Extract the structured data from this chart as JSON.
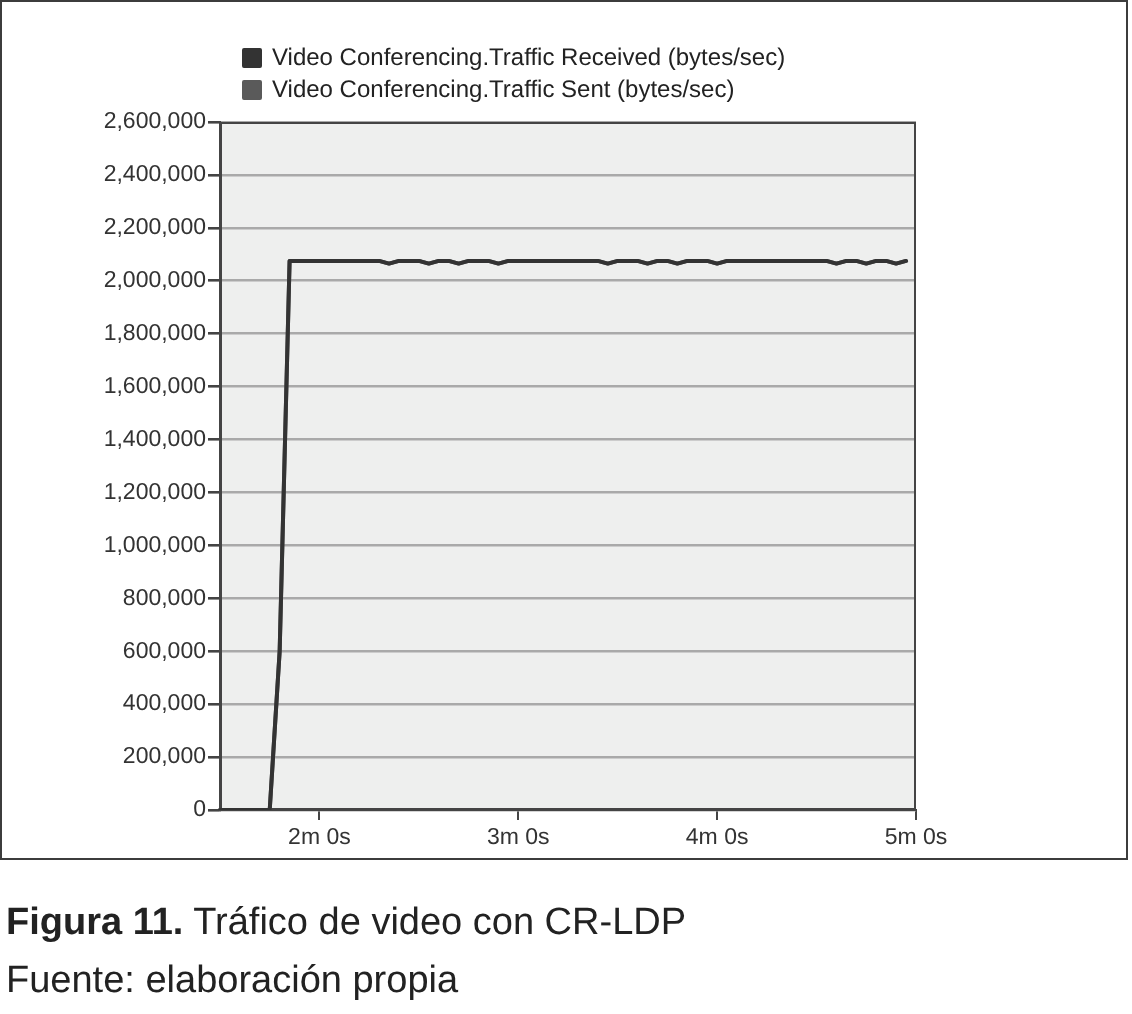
{
  "chart_data": {
    "type": "line",
    "title": "Figura 11. Tráfico de video con CR-LDP",
    "annotations": [
      "Fuente: elaboración propia"
    ],
    "categories": [
      null,
      null,
      null,
      null,
      null,
      null,
      null,
      null,
      null,
      null,
      "2m 0s",
      null,
      null,
      null,
      null,
      null,
      null,
      null,
      null,
      null,
      null,
      null,
      null,
      null,
      null,
      null,
      null,
      null,
      null,
      null,
      "3m 0s",
      null,
      null,
      null,
      null,
      null,
      null,
      null,
      null,
      null,
      null,
      null,
      null,
      null,
      null,
      null,
      null,
      null,
      null,
      null,
      "4m 0s",
      null,
      null,
      null,
      null,
      null,
      null,
      null,
      null,
      null,
      null,
      null,
      null,
      null,
      null,
      null,
      null,
      null,
      null,
      null,
      "5m 0s"
    ],
    "series": [
      {
        "name": "Video Conferencing.Traffic Received (bytes/sec)",
        "color": "#333333",
        "values": [
          0,
          0,
          0,
          0,
          0,
          0,
          600000,
          2075000,
          2075000,
          2075000,
          2075000,
          2075000,
          2075000,
          2075000,
          2075000,
          2075000,
          2075000,
          2065000,
          2075000,
          2075000,
          2075000,
          2065000,
          2075000,
          2075000,
          2065000,
          2075000,
          2075000,
          2075000,
          2065000,
          2075000,
          2075000,
          2075000,
          2075000,
          2075000,
          2075000,
          2075000,
          2075000,
          2075000,
          2075000,
          2065000,
          2075000,
          2075000,
          2075000,
          2065000,
          2075000,
          2075000,
          2065000,
          2075000,
          2075000,
          2075000,
          2065000,
          2075000,
          2075000,
          2075000,
          2075000,
          2075000,
          2075000,
          2075000,
          2075000,
          2075000,
          2075000,
          2075000,
          2065000,
          2075000,
          2075000,
          2065000,
          2075000,
          2075000,
          2065000,
          2075000,
          null
        ]
      },
      {
        "name": "Video Conferencing.Traffic Sent (bytes/sec)",
        "color": "#5a5a5a",
        "values": [
          0,
          0,
          0,
          0,
          0,
          0,
          600000,
          2075000,
          2075000,
          2075000,
          2075000,
          2075000,
          2075000,
          2075000,
          2075000,
          2075000,
          2075000,
          2065000,
          2075000,
          2075000,
          2075000,
          2065000,
          2075000,
          2075000,
          2065000,
          2075000,
          2075000,
          2075000,
          2065000,
          2075000,
          2075000,
          2075000,
          2075000,
          2075000,
          2075000,
          2075000,
          2075000,
          2075000,
          2075000,
          2065000,
          2075000,
          2075000,
          2075000,
          2065000,
          2075000,
          2075000,
          2065000,
          2075000,
          2075000,
          2075000,
          2065000,
          2075000,
          2075000,
          2075000,
          2075000,
          2075000,
          2075000,
          2075000,
          2075000,
          2075000,
          2075000,
          2075000,
          2065000,
          2075000,
          2075000,
          2065000,
          2075000,
          2075000,
          2065000,
          2075000,
          null
        ]
      }
    ],
    "ylim": [
      0,
      2600000
    ],
    "yticks": [
      0,
      {
        "value": 200000,
        "label": "200,000"
      },
      {
        "value": 400000,
        "label": "400,000"
      },
      {
        "value": 600000,
        "label": "600,000"
      },
      {
        "value": 800000,
        "label": "800,000"
      },
      {
        "value": 1000000,
        "label": "1,000,000"
      },
      {
        "value": 1200000,
        "label": "1,200,000"
      },
      {
        "value": 1400000,
        "label": "1,400,000"
      },
      {
        "value": 1600000,
        "label": "1,600,000"
      },
      {
        "value": 1800000,
        "label": "1,800,000"
      },
      {
        "value": 2000000,
        "label": "2,000,000"
      },
      {
        "value": 2200000,
        "label": "2,200,000"
      },
      {
        "value": 2400000,
        "label": "2,400,000"
      },
      {
        "value": 2600000,
        "label": "2,600,000"
      }
    ],
    "grid": "y",
    "legend": "top left"
  }
}
